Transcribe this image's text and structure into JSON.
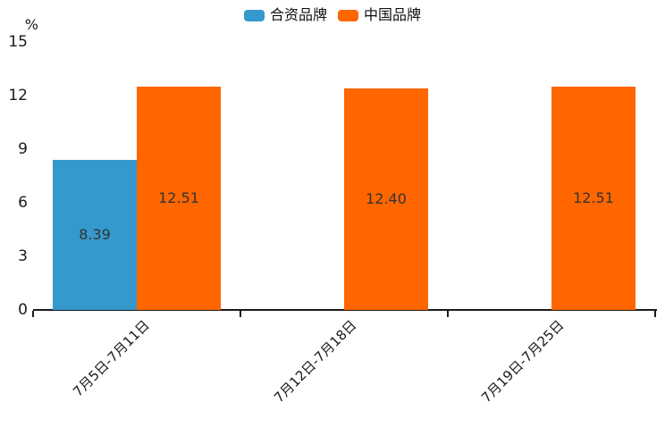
{
  "chart_data": {
    "type": "bar",
    "title": "",
    "ylabel": "%",
    "xlabel": "",
    "categories": [
      "7月5日-7月11日",
      "7月12日-7月18日",
      "7月19日-7月25日"
    ],
    "series": [
      {
        "name": "合资品牌",
        "color": "#3499CD",
        "values": [
          8.39,
          null,
          null
        ],
        "labels": [
          "8.39",
          "",
          ""
        ]
      },
      {
        "name": "中国品牌",
        "color": "#FF6600",
        "values": [
          12.51,
          12.4,
          12.51
        ],
        "labels": [
          "12.51",
          "12.40",
          "12.51"
        ]
      }
    ],
    "ylim": [
      0,
      15
    ],
    "yticks": [
      0,
      3,
      6,
      9,
      12,
      15
    ],
    "legend_position": "top-center",
    "grid": false,
    "bar_value_labels_inside": true,
    "colors": {
      "axis": "#1a1a1a",
      "value_label": "#333333",
      "background": "#ffffff"
    }
  }
}
